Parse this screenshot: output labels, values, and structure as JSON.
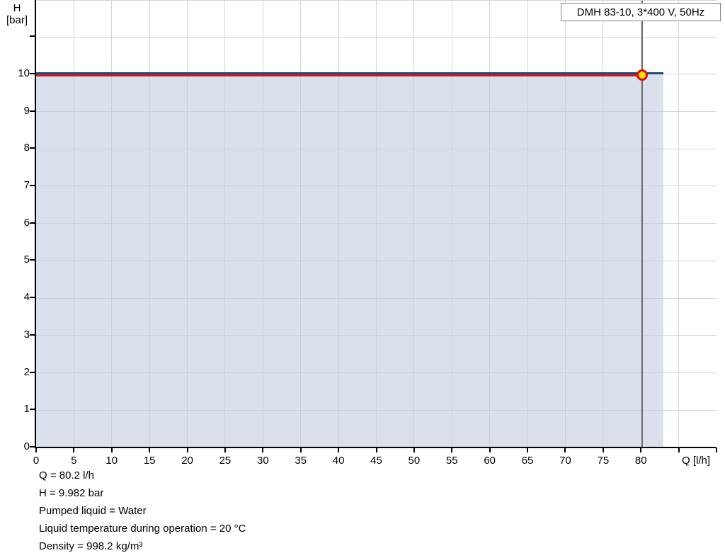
{
  "legend": {
    "label": "DMH 83-10, 3*400 V, 50Hz"
  },
  "axes": {
    "y_title_line1": "H",
    "y_title_line2": "[bar]",
    "x_title": "Q [l/h]"
  },
  "footer": {
    "lines": [
      "Q = 80.2 l/h",
      "H = 9.982 bar",
      "Pumped liquid = Water",
      "Liquid temperature during operation = 20 °C",
      "Density = 998.2 kg/m³"
    ]
  },
  "chart_data": {
    "type": "area",
    "title": "DMH 83-10, 3*400 V, 50Hz",
    "xlabel": "Q [l/h]",
    "ylabel": "H [bar]",
    "xlim": [
      0,
      90
    ],
    "ylim": [
      0,
      11.97
    ],
    "x_tick_step": 5,
    "x_last_labeled_tick": 80,
    "y_tick_step": 1,
    "y_last_labeled_tick": 10,
    "y_last_tick": 11,
    "grid": true,
    "legend_position": "top-right",
    "series": [
      {
        "name": "pump-max-head-curve",
        "color": "#1b4c7e",
        "x": [
          0,
          83
        ],
        "y": [
          10,
          10
        ]
      },
      {
        "name": "operating-head-line",
        "color": "#cf1b1b",
        "x": [
          0,
          80.2
        ],
        "y": [
          9.982,
          9.982
        ]
      }
    ],
    "area": {
      "x_min": 0,
      "x_max": 83,
      "y_top": 10,
      "fill_rgba": "rgba(195,207,224,0.62)"
    },
    "operating_point": {
      "x": 80.2,
      "y": 9.982,
      "fill": "#ffe400",
      "stroke": "#e30613"
    },
    "colors": {
      "grid": "#d6d6d6",
      "axis": "#000000",
      "operating_flow_line": "#6e6e6e",
      "legend_border": "#808080"
    }
  }
}
